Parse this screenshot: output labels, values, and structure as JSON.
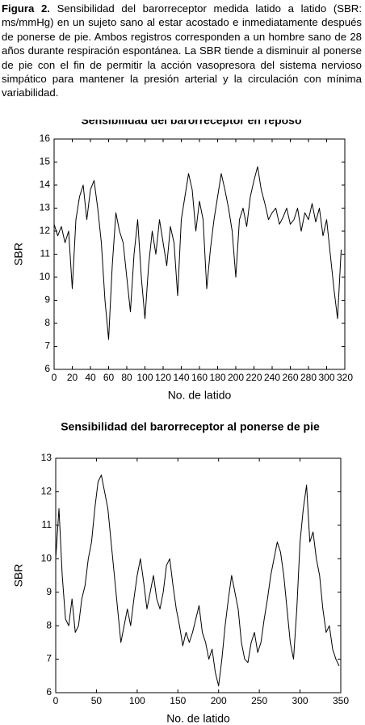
{
  "caption": {
    "label": "Figura 2.",
    "text": "Sensibilidad del barorreceptor medida latido a latido (SBR: ms/mmHg) en un sujeto sano al estar acostado e inmediatamente después de ponerse de pie. Ambos registros corresponden a un hombre sano de 28 años durante respiración espontánea. La SBR tiende a disminuir al ponerse de pie con el fin de permitir la acción vasopresora del sistema nervioso simpático para mantener la presión arterial y la circulación con mínima variabilidad."
  },
  "chart_data": [
    {
      "type": "line",
      "title": "Sensibilidad del barorreceptor en reposo",
      "x_label": "No. de latido",
      "y_label": "SBR",
      "color": "#000000",
      "x": [
        0,
        4,
        8,
        12,
        16,
        20,
        24,
        28,
        32,
        36,
        40,
        44,
        48,
        52,
        56,
        60,
        64,
        68,
        72,
        76,
        80,
        84,
        88,
        92,
        96,
        100,
        104,
        108,
        112,
        116,
        120,
        124,
        128,
        132,
        136,
        140,
        144,
        148,
        152,
        156,
        160,
        164,
        168,
        172,
        176,
        180,
        184,
        188,
        192,
        196,
        200,
        204,
        208,
        212,
        216,
        220,
        224,
        228,
        232,
        236,
        240,
        244,
        248,
        252,
        256,
        260,
        264,
        268,
        272,
        276,
        280,
        284,
        288,
        292,
        296,
        300,
        304,
        308,
        312,
        316
      ],
      "values": [
        12.3,
        11.8,
        12.2,
        11.5,
        12.0,
        9.5,
        12.5,
        13.5,
        14.0,
        12.5,
        13.8,
        14.2,
        13.0,
        11.5,
        9.0,
        7.3,
        10.5,
        12.8,
        12.0,
        11.5,
        10.0,
        8.5,
        11.0,
        12.5,
        10.0,
        8.2,
        10.5,
        12.0,
        11.0,
        12.5,
        11.5,
        10.5,
        12.2,
        11.5,
        9.2,
        12.5,
        13.5,
        14.5,
        13.8,
        12.0,
        13.3,
        12.5,
        9.5,
        11.2,
        12.5,
        13.5,
        14.5,
        13.8,
        13.0,
        12.0,
        10.0,
        12.5,
        13.0,
        12.2,
        13.5,
        14.2,
        14.8,
        13.8,
        13.2,
        12.5,
        12.8,
        13.0,
        12.3,
        12.6,
        13.0,
        12.3,
        12.5,
        13.0,
        12.0,
        12.8,
        12.5,
        13.2,
        12.4,
        13.0,
        11.8,
        12.5,
        11.0,
        9.5,
        8.2,
        11.2
      ],
      "xlim": [
        0,
        320
      ],
      "xticks": [
        0,
        20,
        40,
        60,
        80,
        100,
        120,
        140,
        160,
        180,
        200,
        220,
        240,
        260,
        280,
        300,
        320
      ],
      "ylim": [
        6,
        16
      ],
      "yticks": [
        6,
        7,
        8,
        9,
        10,
        11,
        12,
        13,
        14,
        15,
        16
      ]
    },
    {
      "type": "line",
      "title": "Sensibilidad del barorreceptor al ponerse de pie",
      "x_label": "No. de latido",
      "y_label": "SBR",
      "color": "#000000",
      "x": [
        0,
        4,
        8,
        12,
        16,
        20,
        24,
        28,
        32,
        36,
        40,
        44,
        48,
        52,
        56,
        60,
        64,
        68,
        72,
        76,
        80,
        84,
        88,
        92,
        96,
        100,
        104,
        108,
        112,
        116,
        120,
        124,
        128,
        132,
        136,
        140,
        144,
        148,
        152,
        156,
        160,
        164,
        168,
        172,
        176,
        180,
        184,
        188,
        192,
        196,
        200,
        204,
        208,
        212,
        216,
        220,
        224,
        228,
        232,
        236,
        240,
        244,
        248,
        252,
        256,
        260,
        264,
        268,
        272,
        276,
        280,
        284,
        288,
        292,
        296,
        300,
        304,
        308,
        312,
        316,
        320,
        324,
        328,
        332,
        336,
        340,
        344,
        348
      ],
      "values": [
        10.0,
        11.5,
        9.5,
        8.2,
        8.0,
        8.8,
        7.8,
        8.0,
        8.8,
        9.2,
        10.0,
        10.5,
        11.5,
        12.3,
        12.5,
        12.0,
        11.5,
        10.5,
        9.5,
        8.5,
        7.5,
        8.0,
        8.5,
        8.0,
        8.8,
        9.5,
        10.0,
        9.3,
        8.5,
        9.0,
        9.5,
        8.8,
        8.5,
        9.0,
        9.8,
        10.0,
        9.2,
        8.5,
        8.0,
        7.4,
        7.8,
        7.5,
        7.8,
        8.2,
        8.6,
        7.8,
        7.5,
        7.0,
        7.3,
        6.6,
        6.2,
        7.0,
        8.0,
        8.8,
        9.5,
        9.0,
        8.5,
        7.5,
        7.0,
        6.9,
        7.5,
        7.8,
        7.2,
        7.5,
        8.2,
        8.8,
        9.5,
        10.0,
        10.5,
        10.2,
        9.5,
        8.5,
        7.5,
        7.0,
        8.5,
        10.5,
        11.5,
        12.2,
        10.5,
        10.8,
        10.0,
        9.5,
        8.5,
        7.8,
        8.0,
        7.3,
        7.0,
        6.8
      ],
      "xlim": [
        0,
        350
      ],
      "xticks": [
        0,
        50,
        100,
        150,
        200,
        250,
        300,
        350
      ],
      "ylim": [
        6,
        13
      ],
      "yticks": [
        6,
        7,
        8,
        9,
        10,
        11,
        12,
        13
      ]
    }
  ]
}
